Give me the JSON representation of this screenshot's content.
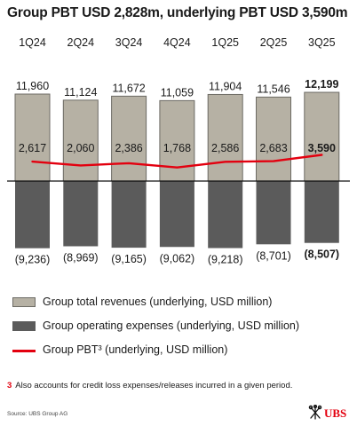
{
  "title": "Group PBT USD 2,828m, underlying PBT USD 3,590m",
  "chart_data": {
    "type": "bar",
    "categories": [
      "1Q24",
      "2Q24",
      "3Q24",
      "4Q24",
      "1Q25",
      "2Q25",
      "3Q25"
    ],
    "series": [
      {
        "name": "Group total revenues (underlying, USD million)",
        "values": [
          11960,
          11124,
          11672,
          11059,
          11904,
          11546,
          12199
        ],
        "labels": [
          "11,960",
          "11,124",
          "11,672",
          "11,059",
          "11,904",
          "11,546",
          "12,199"
        ],
        "color": "#b6b1a4"
      },
      {
        "name": "Group operating expenses (underlying, USD million)",
        "values": [
          -9236,
          -8969,
          -9165,
          -9062,
          -9218,
          -8701,
          -8507
        ],
        "labels": [
          "(9,236)",
          "(8,969)",
          "(9,165)",
          "(9,062)",
          "(9,218)",
          "(8,701)",
          "(8,507)"
        ],
        "color": "#5b5b5b"
      },
      {
        "name": "Group PBT³ (underlying, USD million)",
        "type": "line",
        "values": [
          2617,
          2060,
          2386,
          1768,
          2586,
          2683,
          3590
        ],
        "labels": [
          "2,617",
          "2,060",
          "2,386",
          "1,768",
          "2,586",
          "2,683",
          "3,590"
        ],
        "color": "#e3000f"
      }
    ],
    "highlight_category": "3Q25",
    "grid": false
  },
  "footnote": {
    "number": "3",
    "text": "Also accounts for credit loss expenses/releases incurred in a given period."
  },
  "source": "Source: UBS Group AG",
  "logo": {
    "text": "UBS",
    "icon": "ubs-keys-icon"
  }
}
